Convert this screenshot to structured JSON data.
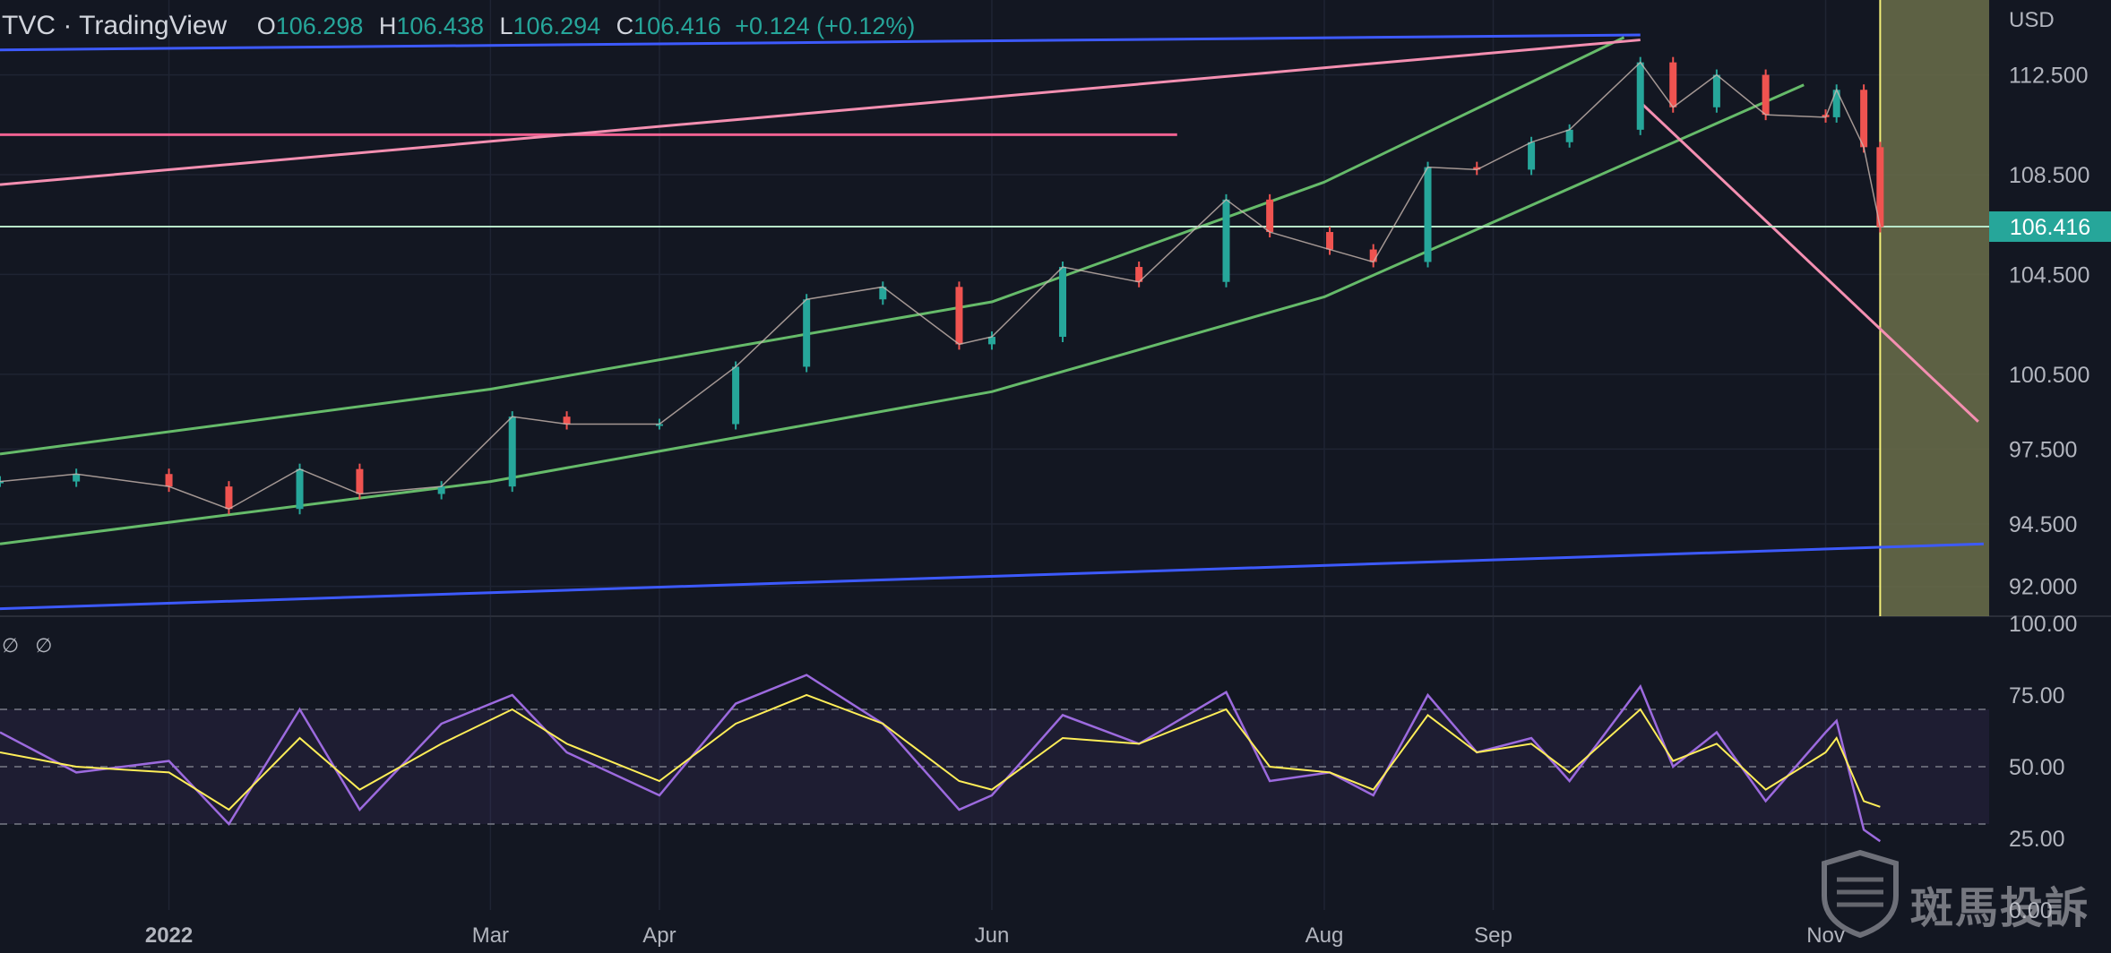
{
  "header": {
    "title": "TVC · TradingView",
    "open_label": "O",
    "open": "106.298",
    "high_label": "H",
    "high": "106.438",
    "low_label": "L",
    "low": "106.294",
    "close_label": "C",
    "close": "106.416",
    "change": "+0.124 (+0.12%)"
  },
  "indicator": {
    "title": "∅ ∅"
  },
  "watermark": {
    "text": "斑馬投訴"
  },
  "colors": {
    "background": "#131722",
    "up": "#26a69a",
    "down": "#ef5350",
    "trend_blue": "#3d5afe",
    "channel_green": "#66bb6a",
    "pink": "#f06292",
    "rsi": "#9c6ade",
    "rsi_ma": "#ffee58",
    "forecast_zone": "#6b6e4a"
  },
  "chart_data": [
    {
      "type": "line",
      "subtype": "candlestick",
      "currency": "USD",
      "y_axis_label": "USD",
      "ylim": [
        90.8,
        115.5
      ],
      "y_ticks": [
        "112.500",
        "108.500",
        "104.500",
        "100.500",
        "97.500",
        "94.500",
        "92.000"
      ],
      "last_price_label": "106.416",
      "x_ticks": [
        "2022",
        "Mar",
        "Apr",
        "Jun",
        "Aug",
        "Sep",
        "Nov"
      ],
      "grid": true,
      "x": [
        "Dec 1",
        "Dec 15",
        "Jan 1",
        "Jan 12",
        "Jan 25",
        "Feb 5",
        "Feb 20",
        "Mar 5",
        "Mar 15",
        "Apr 1",
        "Apr 15",
        "Apr 28",
        "May 12",
        "May 26",
        "Jun 1",
        "Jun 14",
        "Jun 28",
        "Jul 14",
        "Jul 22",
        "Aug 2",
        "Aug 10",
        "Aug 20",
        "Aug 29",
        "Sep 8",
        "Sep 15",
        "Sep 28",
        "Oct 4",
        "Oct 12",
        "Oct 21",
        "Nov 1",
        "Nov 3",
        "Nov 8",
        "Nov 11"
      ],
      "close": [
        96.2,
        96.5,
        96.0,
        95.1,
        96.7,
        95.7,
        96.0,
        98.8,
        98.5,
        98.5,
        100.8,
        103.5,
        104.0,
        101.7,
        102.0,
        104.8,
        104.2,
        107.5,
        106.2,
        105.5,
        105.0,
        108.8,
        108.7,
        109.8,
        110.3,
        113.0,
        111.2,
        112.5,
        110.9,
        110.8,
        111.9,
        109.6,
        106.4
      ],
      "series": [
        {
          "name": "upper blue trendline",
          "x": [
            "Dec 1",
            "Sep 28"
          ],
          "y": [
            113.5,
            114.1
          ]
        },
        {
          "name": "lower blue trendline",
          "x": [
            "Dec 1",
            "Nov 30"
          ],
          "y": [
            91.1,
            93.7
          ]
        },
        {
          "name": "green channel upper",
          "x": [
            "Dec 1",
            "Mar 1",
            "Jun 1",
            "Aug 1",
            "Sep 25"
          ],
          "y": [
            97.3,
            99.9,
            103.4,
            108.2,
            114.0
          ]
        },
        {
          "name": "green channel lower",
          "x": [
            "Dec 1",
            "Mar 1",
            "Jun 1",
            "Aug 1",
            "Oct 28"
          ],
          "y": [
            93.7,
            96.2,
            99.8,
            103.6,
            112.1
          ]
        },
        {
          "name": "pink resistance",
          "x": [
            "Jul 5",
            "Dec 1"
          ],
          "y": [
            110.1,
            110.1
          ]
        },
        {
          "name": "pink falling upper",
          "x": [
            "Sep 28",
            "Dec 1"
          ],
          "y": [
            113.9,
            108.1
          ]
        },
        {
          "name": "pink falling lower",
          "x": [
            "Sep 28",
            "Nov 29"
          ],
          "y": [
            111.4,
            98.6
          ]
        }
      ],
      "forecast_zone": {
        "from": "Nov 11",
        "to": "Dec 1"
      }
    },
    {
      "type": "line",
      "subtype": "RSI",
      "ylim": [
        0,
        100
      ],
      "y_ticks": [
        "100.00",
        "75.00",
        "50.00",
        "25.00",
        "0.00"
      ],
      "bands": [
        30,
        70
      ],
      "x": [
        "Dec 1",
        "Dec 15",
        "Jan 1",
        "Jan 12",
        "Jan 25",
        "Feb 5",
        "Feb 20",
        "Mar 5",
        "Mar 15",
        "Apr 1",
        "Apr 15",
        "Apr 28",
        "May 12",
        "May 26",
        "Jun 1",
        "Jun 14",
        "Jun 28",
        "Jul 14",
        "Jul 22",
        "Aug 2",
        "Aug 10",
        "Aug 20",
        "Aug 29",
        "Sep 8",
        "Sep 15",
        "Sep 28",
        "Oct 4",
        "Oct 12",
        "Oct 21",
        "Nov 1",
        "Nov 3",
        "Nov 8",
        "Nov 11"
      ],
      "rsi": [
        62,
        48,
        52,
        30,
        70,
        35,
        65,
        75,
        55,
        40,
        72,
        82,
        65,
        35,
        40,
        68,
        58,
        76,
        45,
        48,
        40,
        75,
        55,
        60,
        45,
        78,
        50,
        62,
        38,
        62,
        66,
        28,
        24
      ],
      "rsi_ma": [
        55,
        50,
        48,
        35,
        60,
        42,
        58,
        70,
        58,
        45,
        65,
        75,
        65,
        45,
        42,
        60,
        58,
        70,
        50,
        48,
        42,
        68,
        55,
        58,
        48,
        70,
        52,
        58,
        42,
        55,
        60,
        38,
        36
      ]
    }
  ]
}
